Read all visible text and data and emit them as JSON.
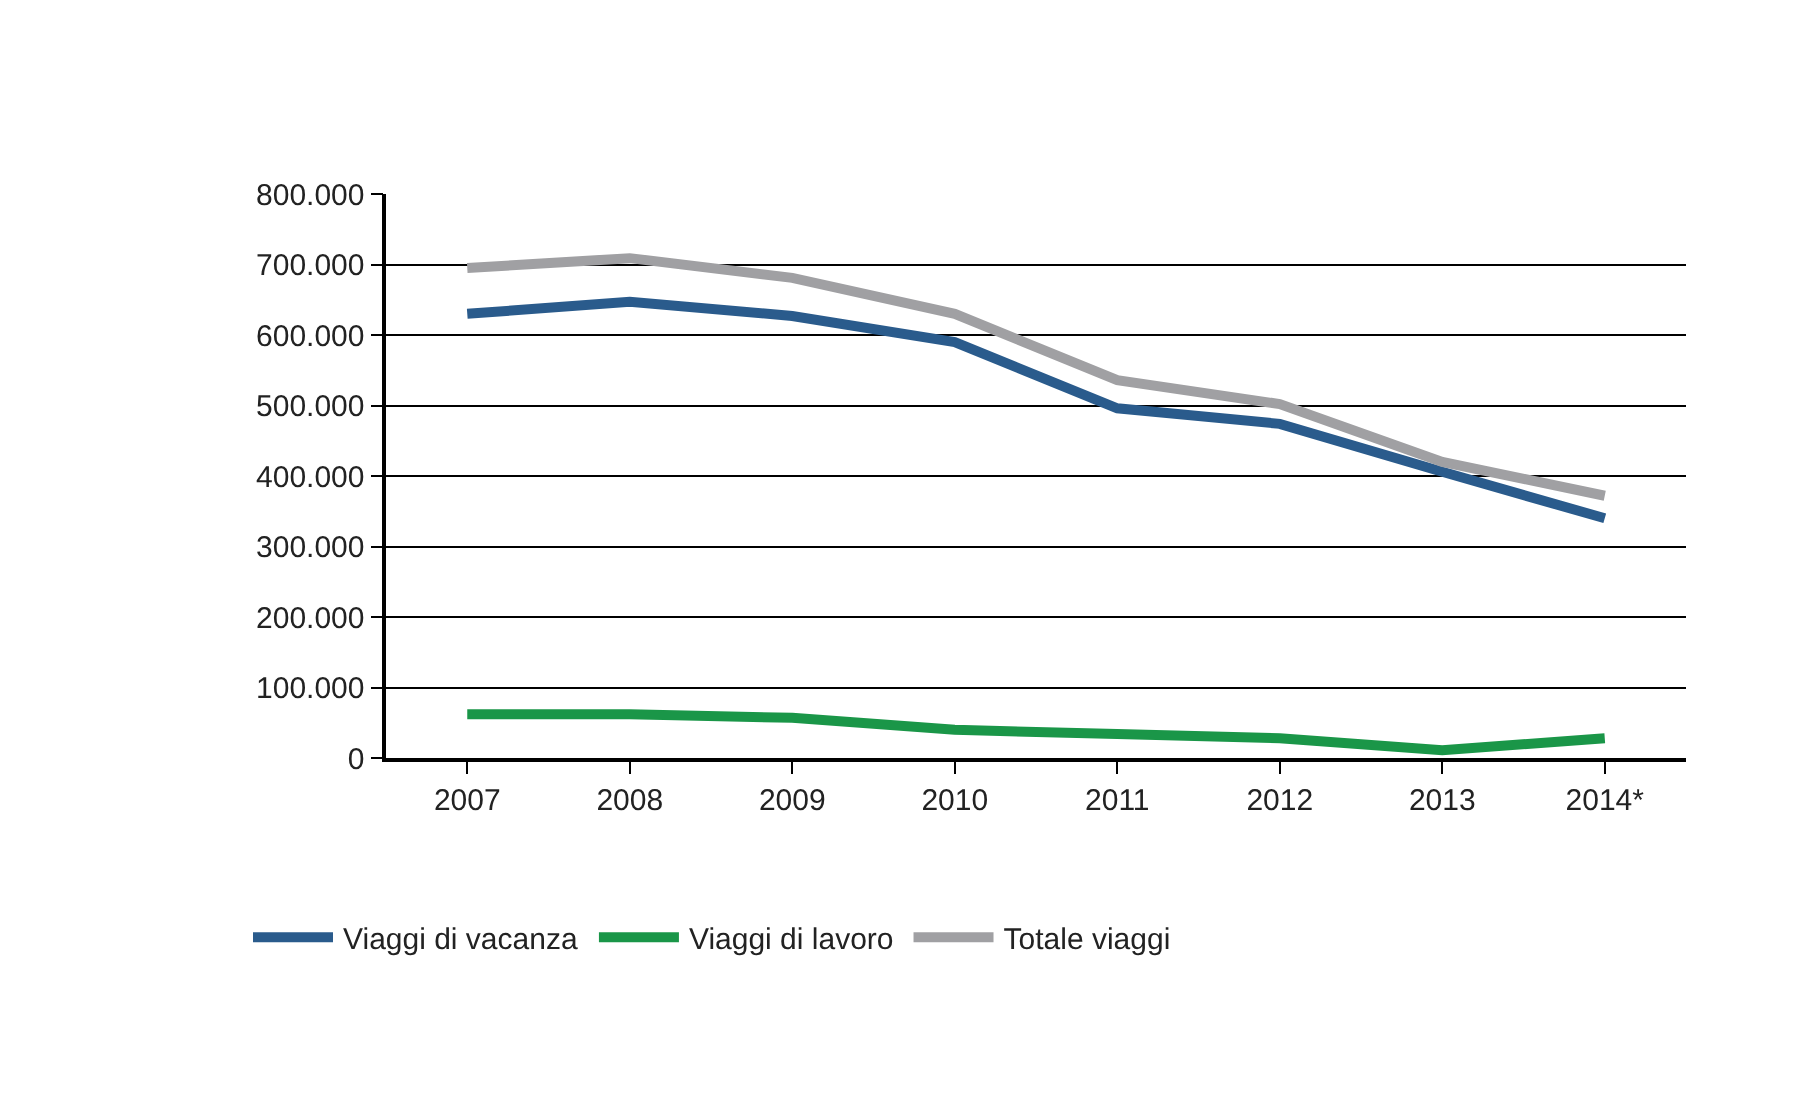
{
  "chart_data": {
    "type": "line",
    "categories": [
      "2007",
      "2008",
      "2009",
      "2010",
      "2011",
      "2012",
      "2013",
      "2014*"
    ],
    "series": [
      {
        "name": "Viaggi di vacanza",
        "color": "#2a5b8c",
        "values": [
          630000,
          647000,
          627000,
          590000,
          496000,
          474000,
          406000,
          340000
        ]
      },
      {
        "name": "Viaggi di lavoro",
        "color": "#1a9648",
        "values": [
          62000,
          62000,
          57000,
          40000,
          34000,
          28000,
          11000,
          28000
        ]
      },
      {
        "name": "Totale viaggi",
        "color": "#a0a0a3",
        "values": [
          695000,
          709000,
          681000,
          630000,
          536000,
          502000,
          420000,
          372000
        ]
      }
    ],
    "ylim": [
      0,
      800000
    ],
    "yticks": [
      0,
      {
        "value": 100000,
        "label": "100.000"
      },
      {
        "value": 200000,
        "label": "200.000"
      },
      {
        "value": 300000,
        "label": "300.000"
      },
      {
        "value": 400000,
        "label": "400.000"
      },
      {
        "value": 500000,
        "label": "500.000"
      },
      {
        "value": 600000,
        "label": "600.000"
      },
      {
        "value": 700000,
        "label": "700.000"
      },
      {
        "value": 800000,
        "label": "800.000"
      }
    ],
    "grid": "y",
    "legend": "bottom",
    "marker": "none",
    "line_style": "solid"
  }
}
